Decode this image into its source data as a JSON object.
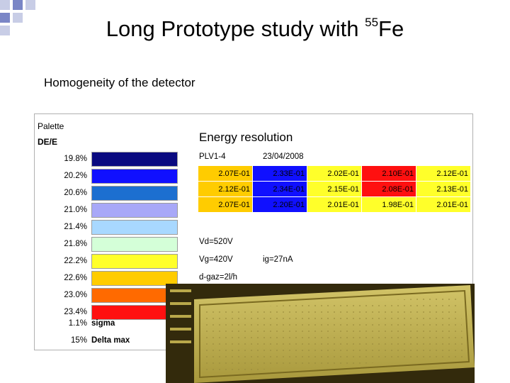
{
  "slide": {
    "title_main": "Long Prototype study with ",
    "title_sup": "55",
    "title_tail": "Fe",
    "subtitle": "Homogeneity of the detector"
  },
  "palette": {
    "title": "Palette",
    "header": "DE/E",
    "levels": [
      {
        "label": "19.8%",
        "color": "#0a0a80"
      },
      {
        "label": "20.2%",
        "color": "#1010ff"
      },
      {
        "label": "20.6%",
        "color": "#1c6fd0"
      },
      {
        "label": "21.0%",
        "color": "#a8a8f8"
      },
      {
        "label": "21.4%",
        "color": "#a8d8ff"
      },
      {
        "label": "21.8%",
        "color": "#d4ffd8"
      },
      {
        "label": "22.2%",
        "color": "#ffff2a"
      },
      {
        "label": "22.6%",
        "color": "#ffcc00"
      },
      {
        "label": "23.0%",
        "color": "#ff6a00"
      },
      {
        "label": "23.4%",
        "color": "#ff1010"
      }
    ],
    "sigma_value": "1.1%",
    "sigma_label": "sigma",
    "delta_value": "15%",
    "delta_label": "Delta max"
  },
  "energy": {
    "title": "Energy resolution",
    "detector": "PLV1-4",
    "date": "23/04/2008",
    "rows": [
      [
        {
          "v": "2.07E-01",
          "c": "#ffcc00"
        },
        {
          "v": "2.33E-01",
          "c": "#1010ff"
        },
        {
          "v": "2.02E-01",
          "c": "#ffff2a"
        },
        {
          "v": "2.10E-01",
          "c": "#ff1010"
        },
        {
          "v": "2.12E-01",
          "c": "#ffff2a"
        }
      ],
      [
        {
          "v": "2.12E-01",
          "c": "#ffcc00"
        },
        {
          "v": "2.34E-01",
          "c": "#1010ff"
        },
        {
          "v": "2.15E-01",
          "c": "#ffff2a"
        },
        {
          "v": "2.08E-01",
          "c": "#ff1010"
        },
        {
          "v": "2.13E-01",
          "c": "#ffff2a"
        }
      ],
      [
        {
          "v": "2.07E-01",
          "c": "#ffcc00"
        },
        {
          "v": "2.20E-01",
          "c": "#1010ff"
        },
        {
          "v": "2.01E-01",
          "c": "#ffff2a"
        },
        {
          "v": "1.98E-01",
          "c": "#ffff2a"
        },
        {
          "v": "2.01E-01",
          "c": "#ffff2a"
        }
      ]
    ],
    "vd": "Vd=520V",
    "vg": "Vg=420V",
    "ig": "ig=27nA",
    "gas": "d-gaz=2l/h"
  },
  "colors": {
    "corner_blue": "#7a86c6",
    "corner_light": "#c8cde6",
    "photo_board": "#c4b458",
    "photo_frame": "#332a0c"
  }
}
